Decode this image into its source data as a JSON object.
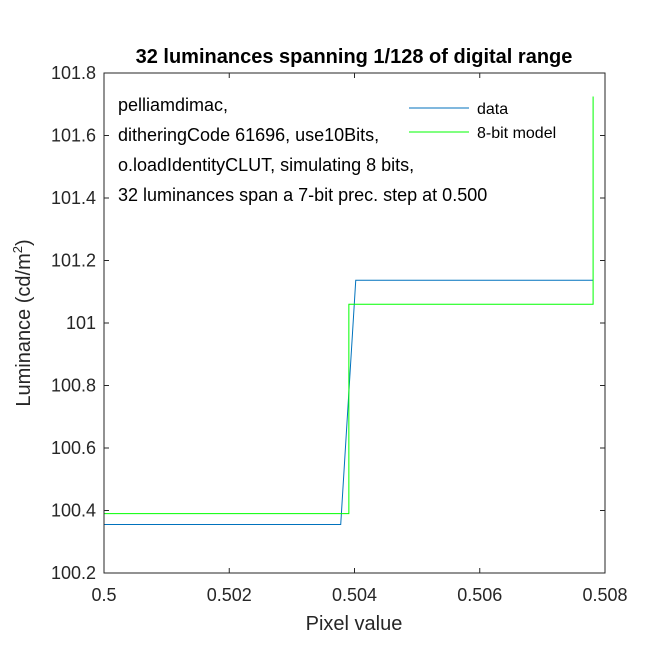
{
  "chart_data": {
    "type": "line",
    "title": "32 luminances spanning 1/128 of digital range",
    "xlabel": "Pixel value",
    "ylabel": "Luminance (cd/m",
    "ylabel_sup": "2",
    "ylabel_close": ")",
    "xlim": [
      0.5,
      0.508
    ],
    "ylim": [
      100.2,
      101.8
    ],
    "x_ticks": [
      0.5,
      0.502,
      0.504,
      0.506,
      0.508
    ],
    "x_tick_labels": [
      "0.5",
      "0.502",
      "0.504",
      "0.506",
      "0.508"
    ],
    "y_ticks": [
      100.2,
      100.4,
      100.6,
      100.8,
      101.0,
      101.2,
      101.4,
      101.6,
      101.8
    ],
    "y_tick_labels": [
      "100.2",
      "100.4",
      "100.6",
      "100.8",
      "101",
      "101.2",
      "101.4",
      "101.6",
      "101.8"
    ],
    "grid": false,
    "legend_position": "top-right",
    "annotation_lines": [
      "pelliamdimac,",
      "ditheringCode 61696, use10Bits,",
      "o.loadIdentityCLUT, simulating 8 bits,",
      "32 luminances span a 7-bit prec. step at 0.500"
    ],
    "series": [
      {
        "name": "data",
        "color": "#0072BD",
        "x": [
          0.5,
          0.50378,
          0.50402,
          0.50781
        ],
        "y": [
          100.355,
          100.355,
          101.137,
          101.137
        ]
      },
      {
        "name": "8-bit model",
        "color": "#00FF00",
        "x": [
          0.5,
          0.50391,
          0.50391,
          0.50781,
          0.50781
        ],
        "y": [
          100.39,
          100.39,
          101.06,
          101.06,
          101.725
        ]
      }
    ]
  }
}
